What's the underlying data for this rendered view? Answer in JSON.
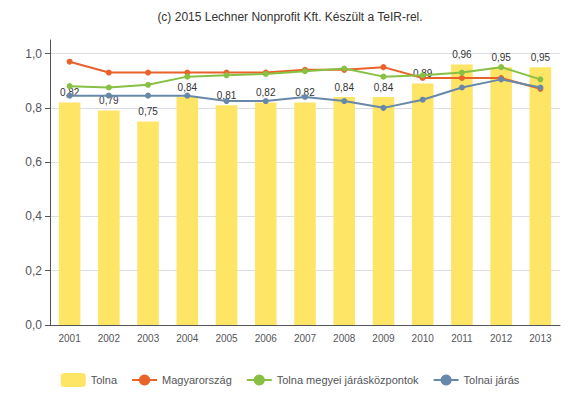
{
  "chart_data": {
    "type": "bar",
    "title": "(c) 2015 Lechner Nonprofit Kft. Készült a TeIR-rel.",
    "categories": [
      "2001",
      "2002",
      "2003",
      "2004",
      "2005",
      "2006",
      "2007",
      "2008",
      "2009",
      "2010",
      "2011",
      "2012",
      "2013"
    ],
    "series": [
      {
        "name": "Tolna",
        "type": "bar",
        "color": "#FFE566",
        "data_labels": true,
        "values": [
          0.82,
          0.79,
          0.75,
          0.84,
          0.81,
          0.82,
          0.82,
          0.84,
          0.84,
          0.89,
          0.96,
          0.95,
          0.95
        ],
        "value_labels": [
          "0,82",
          "0,79",
          "0,75",
          "0,84",
          "0,81",
          "0,82",
          "0,82",
          "0,84",
          "0,84",
          "0,89",
          "0,96",
          "0,95",
          "0,95"
        ]
      },
      {
        "name": "Magyarország",
        "type": "line",
        "color": "#E8622A",
        "marker": "circle",
        "values": [
          0.97,
          0.93,
          0.93,
          0.93,
          0.93,
          0.93,
          0.94,
          0.94,
          0.95,
          0.91,
          0.91,
          0.91,
          0.87
        ]
      },
      {
        "name": "Tolna megyei járásközpontok",
        "type": "line",
        "color": "#88C044",
        "marker": "circle",
        "values": [
          0.88,
          0.875,
          0.885,
          0.915,
          0.92,
          0.925,
          0.935,
          0.945,
          0.915,
          0.92,
          0.93,
          0.95,
          0.905
        ]
      },
      {
        "name": "Tolnai járás",
        "type": "line",
        "color": "#6888AA",
        "marker": "circle",
        "values": [
          0.845,
          0.845,
          0.845,
          0.845,
          0.825,
          0.825,
          0.84,
          0.825,
          0.8,
          0.83,
          0.875,
          0.905,
          0.875
        ]
      }
    ],
    "ylim": [
      0,
      1.05
    ],
    "yticks": [
      {
        "value": 0.0,
        "label": "0,0"
      },
      {
        "value": 0.2,
        "label": "0,2"
      },
      {
        "value": 0.4,
        "label": "0,4"
      },
      {
        "value": 0.6,
        "label": "0,6"
      },
      {
        "value": 0.8,
        "label": "0,8"
      },
      {
        "value": 1.0,
        "label": "1,0"
      }
    ],
    "grid": true,
    "legend": "bottom"
  }
}
